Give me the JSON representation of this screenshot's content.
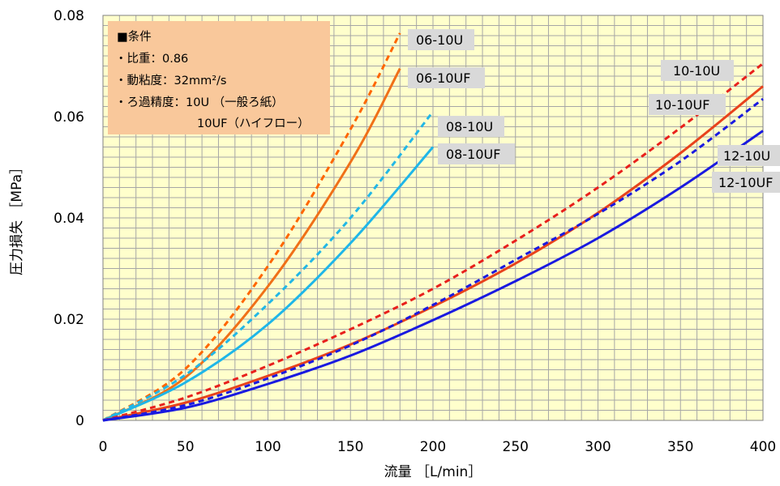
{
  "chart_data": {
    "type": "line",
    "xlabel": "流量 ［L/min］",
    "ylabel": "圧力損失 ［MPa］",
    "xlim": [
      0,
      400
    ],
    "ylim": [
      0,
      0.08
    ],
    "xticks": [
      0,
      50,
      100,
      150,
      200,
      250,
      300,
      350,
      400
    ],
    "yticks": [
      0,
      0.02,
      0.04,
      0.06,
      0.08
    ],
    "xtick_labels": [
      "0",
      "50",
      "100",
      "150",
      "200",
      "250",
      "300",
      "350",
      "400"
    ],
    "ytick_labels": [
      "0",
      "0.02",
      "0.04",
      "0.06",
      "0.08"
    ],
    "grid": true,
    "plot_background": "#ffffcc",
    "conditions": {
      "title": "■条件",
      "lines": [
        "・比重：0.86",
        "・動粘度：32mm²/s",
        "・ろ過精度：10U （一般ろ紙）",
        "10UF（ハイフロー）"
      ],
      "background": "#f9c89b"
    },
    "series": [
      {
        "name": "06-10U",
        "color": "#ff6600",
        "dash": true,
        "x": [
          0,
          50,
          100,
          150,
          180
        ],
        "y": [
          0,
          0.0102,
          0.0305,
          0.0575,
          0.0765
        ]
      },
      {
        "name": "06-10UF",
        "color": "#f07018",
        "dash": false,
        "x": [
          0,
          50,
          100,
          150,
          180
        ],
        "y": [
          0,
          0.0085,
          0.0265,
          0.051,
          0.0695
        ]
      },
      {
        "name": "08-10U",
        "color": "#22b7e6",
        "dash": true,
        "x": [
          0,
          50,
          100,
          150,
          200
        ],
        "y": [
          0,
          0.009,
          0.023,
          0.04,
          0.061
        ]
      },
      {
        "name": "08-10UF",
        "color": "#1fb6e8",
        "dash": false,
        "x": [
          0,
          50,
          100,
          150,
          200
        ],
        "y": [
          0,
          0.0075,
          0.019,
          0.035,
          0.054
        ]
      },
      {
        "name": "10-10U",
        "color": "#e8201c",
        "dash": true,
        "x": [
          0,
          50,
          100,
          150,
          200,
          250,
          300,
          350,
          400
        ],
        "y": [
          0,
          0.0045,
          0.0108,
          0.018,
          0.026,
          0.0355,
          0.046,
          0.0578,
          0.0705
        ]
      },
      {
        "name": "10-10UF",
        "color": "#e8421c",
        "dash": false,
        "x": [
          0,
          50,
          100,
          150,
          200,
          250,
          300,
          350,
          400
        ],
        "y": [
          0,
          0.0035,
          0.0088,
          0.015,
          0.0225,
          0.031,
          0.041,
          0.0528,
          0.066
        ]
      },
      {
        "name": "12-10U",
        "color": "#1a1ae0",
        "dash": true,
        "x": [
          0,
          50,
          100,
          150,
          200,
          250,
          300,
          350,
          400
        ],
        "y": [
          0,
          0.003,
          0.0083,
          0.0148,
          0.0228,
          0.0317,
          0.0408,
          0.0512,
          0.0635
        ]
      },
      {
        "name": "12-10UF",
        "color": "#1a1ae0",
        "dash": false,
        "x": [
          0,
          50,
          100,
          150,
          200,
          250,
          300,
          350,
          400
        ],
        "y": [
          0,
          0.0025,
          0.0072,
          0.0128,
          0.0198,
          0.0275,
          0.036,
          0.046,
          0.0572
        ]
      }
    ]
  }
}
